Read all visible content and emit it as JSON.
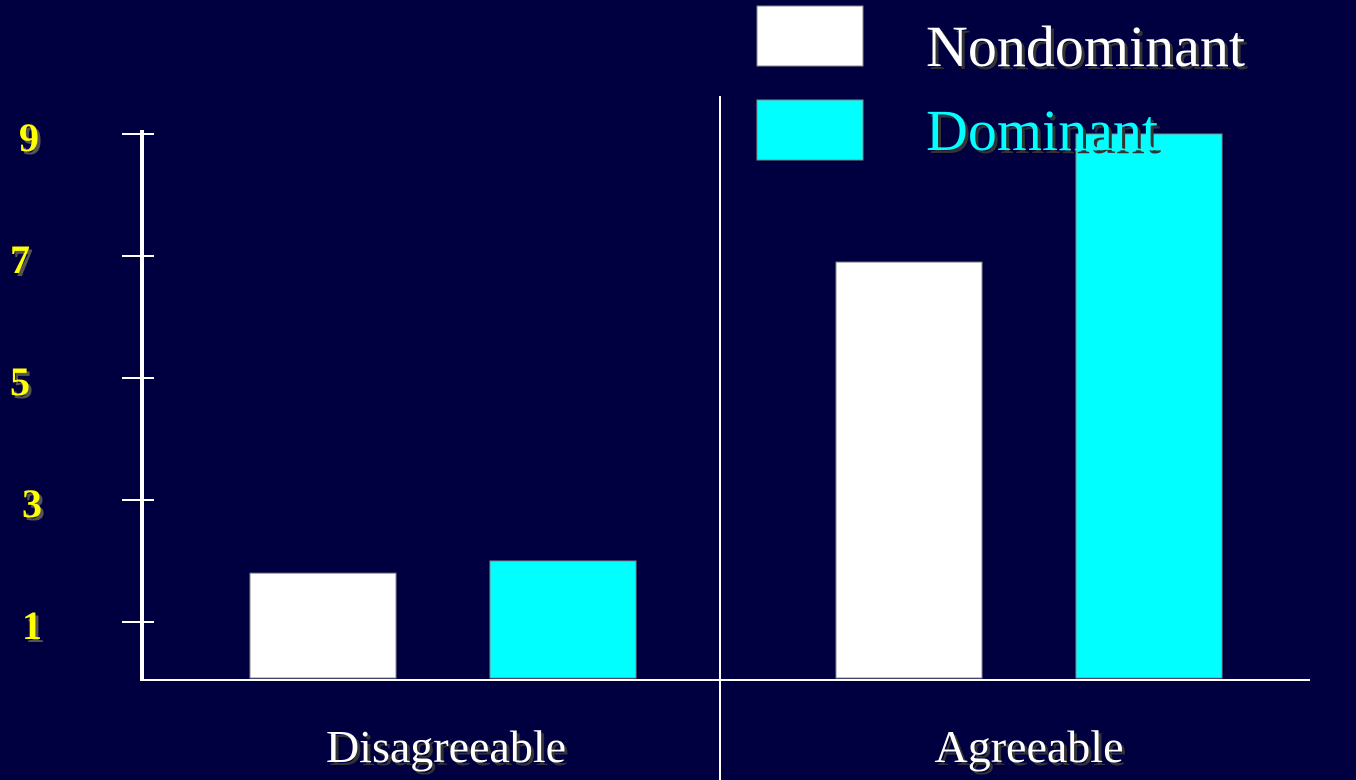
{
  "chart_data": {
    "type": "bar",
    "title": "",
    "xlabel": "",
    "ylabel": "",
    "categories": [
      "Disagreeable",
      "Agreeable"
    ],
    "series": [
      {
        "name": "Nondominant",
        "values": [
          1.8,
          6.9
        ],
        "color": "#FFFFFF"
      },
      {
        "name": "Dominant",
        "values": [
          2.0,
          9.0
        ],
        "color": "#00FFFF"
      }
    ],
    "yticks": [
      1,
      3,
      5,
      7,
      9
    ],
    "ytick_labels": [
      "1",
      "3",
      "5",
      "7",
      "9"
    ],
    "ylim": [
      0,
      9
    ],
    "grid": false,
    "legend": "top-right",
    "colors": {
      "background": "#000040",
      "axis": "#FFFFFF",
      "tick_label": "#FFFF00",
      "tick_label_shadow": "#555555",
      "legend_nondominant_text": "#FFFFFF",
      "legend_dominant_text": "#00FFFF",
      "category_text": "#FFFFFF"
    }
  }
}
